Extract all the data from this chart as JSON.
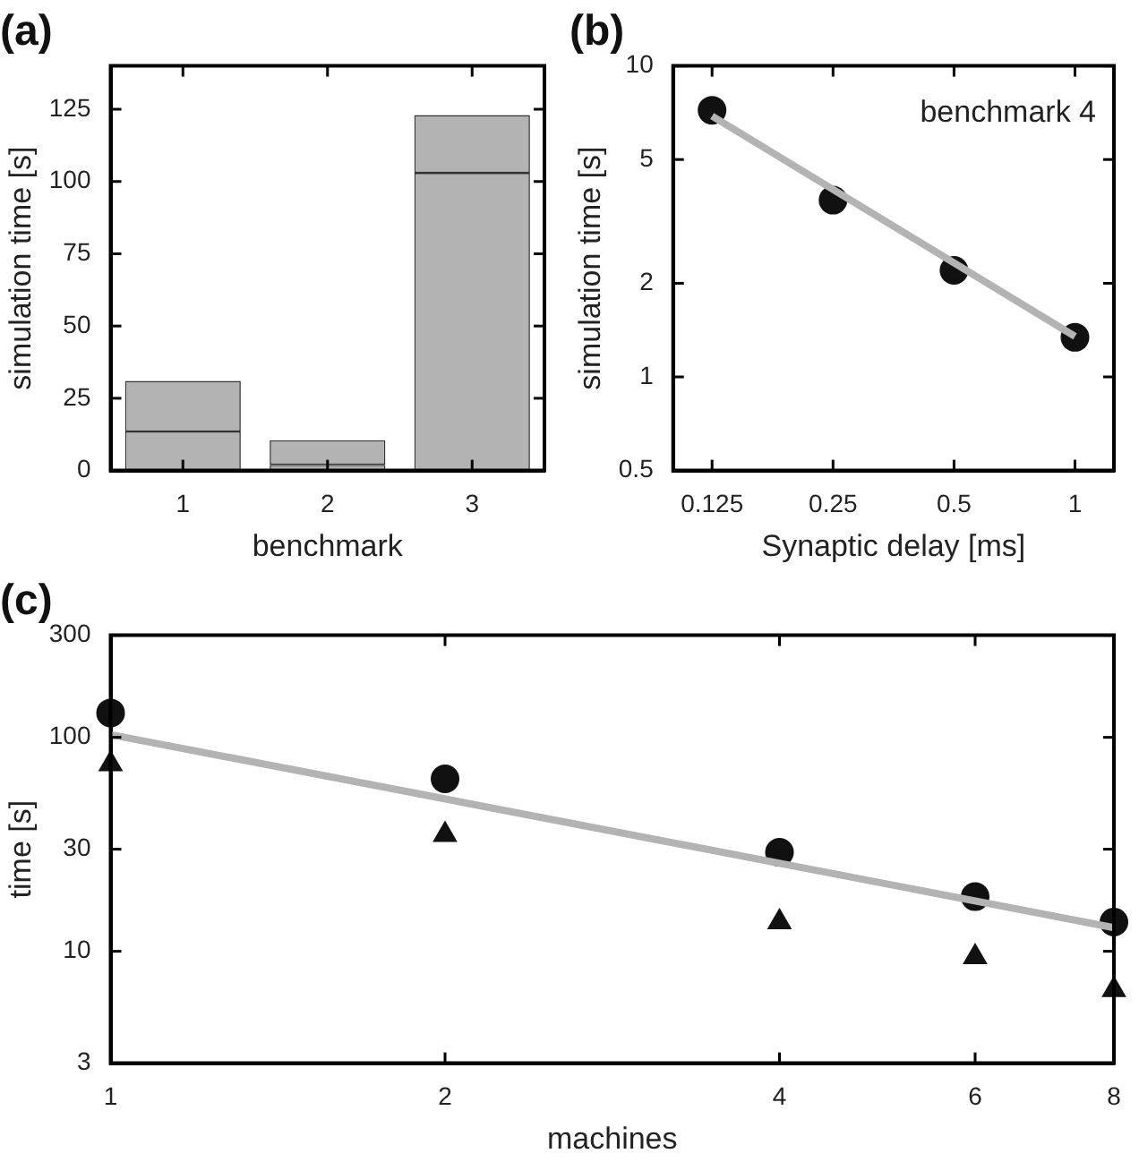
{
  "chart_data": [
    {
      "type": "bar",
      "title": "(a)",
      "xlabel": "benchmark",
      "ylabel": "simulation time [s]",
      "categories": [
        "1",
        "2",
        "3"
      ],
      "stacked": true,
      "series": [
        {
          "color": "#b3b3b3",
          "values": [
            13.5,
            2,
            103
          ]
        },
        {
          "color": "#b3b3b3",
          "values": [
            17.5,
            8.5,
            20
          ]
        }
      ],
      "ylim": [
        0,
        140
      ],
      "yticks": [
        0,
        25,
        50,
        75,
        100,
        125
      ]
    },
    {
      "type": "scatter",
      "title": "(b)",
      "xlabel": "Synaptic delay [ms]",
      "ylabel": "simulation time [s]",
      "log": "xy",
      "marker": "circle",
      "x": [
        0.125,
        0.25,
        0.5,
        1
      ],
      "series": [
        {
          "type": "line",
          "color": "#b3b3b3",
          "x": [
            0.125,
            1
          ],
          "values": [
            6.9,
            1.35
          ],
          "marker": "none"
        },
        {
          "type": "scatter",
          "color": "#111111",
          "values": [
            7.2,
            3.7,
            2.2,
            1.34
          ]
        }
      ],
      "xlim": [
        0.1,
        1.25
      ],
      "xticks": [
        0.125,
        0.25,
        0.5,
        1
      ],
      "ylim": [
        0.5,
        10
      ],
      "yticks": [
        0.5,
        1,
        2,
        5,
        10
      ],
      "annotations": [
        "benchmark 4"
      ]
    },
    {
      "type": "scatter",
      "title": "(c)",
      "xlabel": "machines",
      "ylabel": "time [s]",
      "log": "xy",
      "marker": "circle",
      "x": [
        1,
        2,
        4,
        6,
        8
      ],
      "series": [
        {
          "type": "line",
          "color": "#b3b3b3",
          "x": [
            1,
            8
          ],
          "values": [
            103,
            12.9
          ],
          "marker": "none"
        },
        {
          "type": "scatter",
          "color": "#111111",
          "values": [
            130,
            64,
            29,
            18,
            13.7
          ]
        },
        {
          "type": "scatter",
          "color": "#111111",
          "values": [
            75,
            35,
            13.7,
            9.4,
            6.6
          ],
          "marker": "triangle"
        }
      ],
      "xlim": [
        1,
        8
      ],
      "xticks": [
        1,
        2,
        4,
        6,
        8
      ],
      "ylim": [
        3,
        300
      ],
      "yticks": [
        3,
        10,
        30,
        100,
        300
      ]
    }
  ]
}
